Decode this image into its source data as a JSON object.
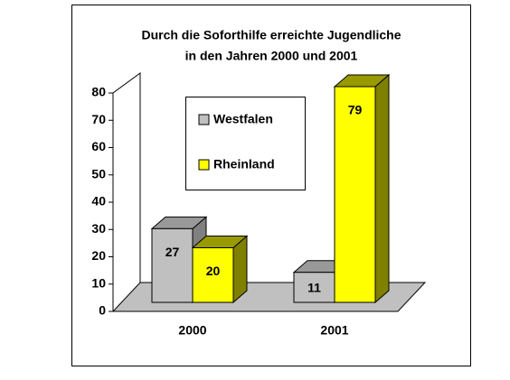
{
  "chart_data": {
    "type": "bar3d",
    "title": [
      "Durch die Soforthilfe erreichte Jugendliche",
      "in den Jahren 2000 und 2001"
    ],
    "categories": [
      "2000",
      "2001"
    ],
    "series": [
      {
        "name": "Westfalen",
        "color": "#c0c0c0",
        "values": [
          27,
          11
        ]
      },
      {
        "name": "Rheinland",
        "color": "#ffff00",
        "values": [
          20,
          79
        ]
      }
    ],
    "ylim": [
      0,
      80
    ],
    "yticks": [
      0,
      10,
      20,
      30,
      40,
      50,
      60,
      70,
      80
    ]
  }
}
